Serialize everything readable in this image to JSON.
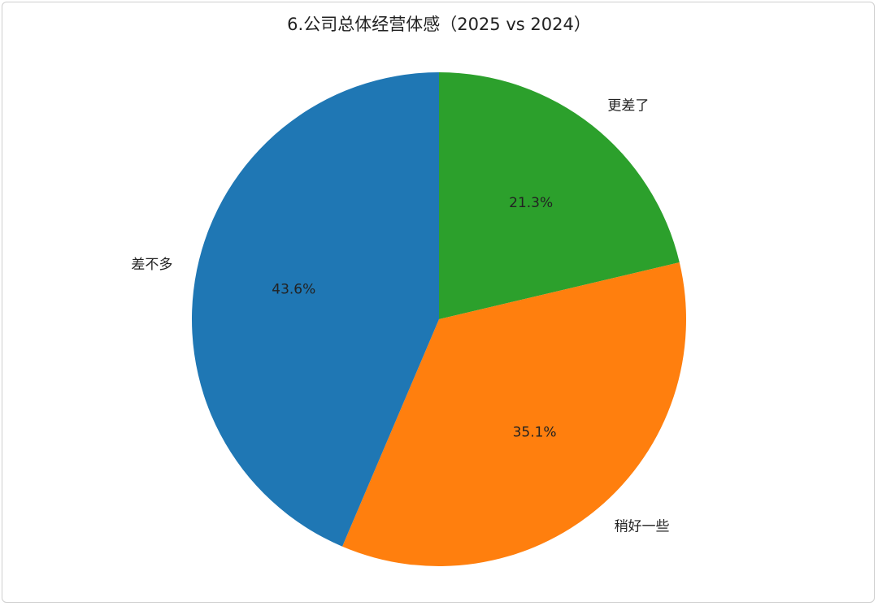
{
  "chart_data": {
    "type": "pie",
    "title": "6.公司总体经营体感（2025 vs 2024）",
    "categories": [
      "更差了",
      "稍好一些",
      "差不多"
    ],
    "values": [
      21.3,
      35.1,
      43.6
    ],
    "value_labels": [
      "21.3%",
      "35.1%",
      "43.6%"
    ],
    "colors": [
      "#2ca02c",
      "#ff7f0e",
      "#1f77b4"
    ]
  }
}
